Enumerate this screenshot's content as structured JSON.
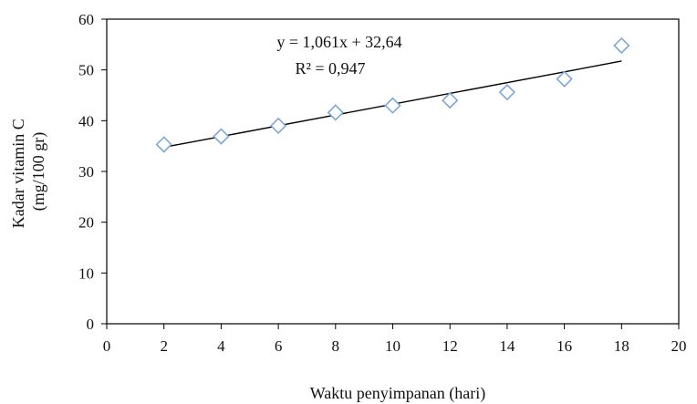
{
  "chart_data": {
    "type": "scatter",
    "title": "",
    "xlabel": "Waktu penyimpanan  (hari)",
    "ylabel_lines": [
      "Kadar  vitamin C",
      "(mg/100  gr)"
    ],
    "xlim": [
      0,
      20
    ],
    "ylim": [
      0,
      60
    ],
    "xticks": [
      0,
      2,
      4,
      6,
      8,
      10,
      12,
      14,
      16,
      18,
      20
    ],
    "yticks": [
      0,
      10,
      20,
      30,
      40,
      50,
      60
    ],
    "grid": false,
    "legend": "none",
    "marker": "diamond",
    "marker_color": "#7ea6d6",
    "series": [
      {
        "x": [
          2,
          4,
          6,
          8,
          10,
          12,
          14,
          16,
          18
        ],
        "y": [
          35.3,
          36.9,
          39.0,
          41.6,
          43.0,
          44.0,
          45.6,
          48.2,
          54.8
        ]
      }
    ],
    "trendline": {
      "slope": 1.061,
      "intercept": 32.64,
      "x_range": [
        2,
        18
      ],
      "color": "#000000"
    },
    "annotations": [
      "y = 1,061x  + 32,64",
      "R² = 0,947"
    ]
  }
}
